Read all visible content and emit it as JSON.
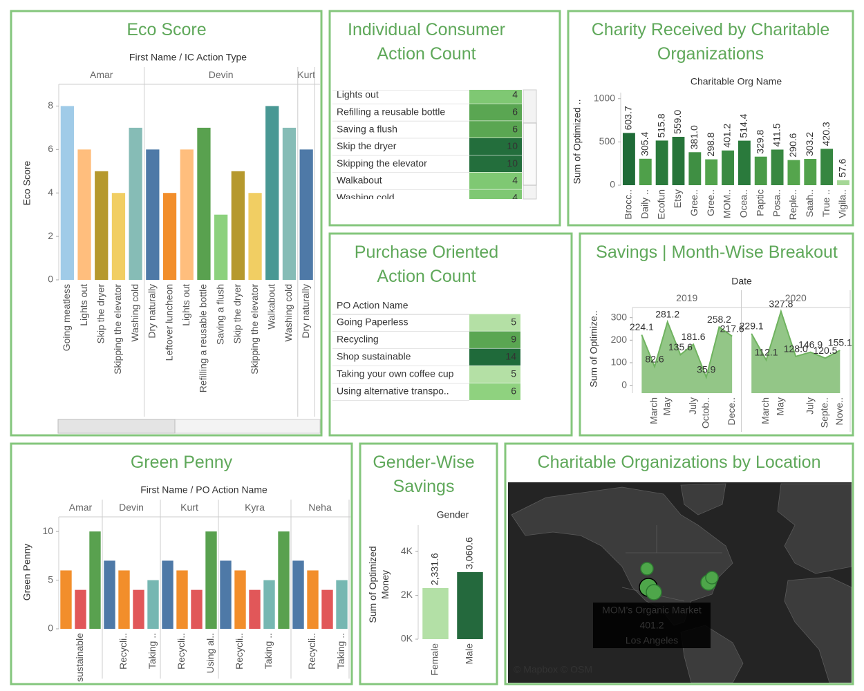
{
  "chart_data": [
    {
      "type": "grouped_bar",
      "title": "Eco Score",
      "header": "First Name / IC Action Type",
      "ylabel": "Eco Score",
      "ylim": [
        0,
        9
      ],
      "yticks": [
        0,
        2,
        4,
        6,
        8
      ],
      "groups": [
        {
          "name": "Amar",
          "categories": [
            "Going meatless",
            "Lights out",
            "Skip the dryer",
            "Skipping the elevator",
            "Washing cold"
          ],
          "values": [
            8,
            6,
            5,
            4,
            7
          ],
          "colors": [
            "#a0cbe8",
            "#ffbe7d",
            "#b6992d",
            "#f1ce63",
            "#86bcb6"
          ]
        },
        {
          "name": "Devin",
          "categories": [
            "Dry naturally",
            "Leftover luncheon",
            "Lights out",
            "Refilling a reusable bottle",
            "Saving a flush",
            "Skip the dryer",
            "Skipping the elevator",
            "Walkabout",
            "Washing cold"
          ],
          "values": [
            6,
            4,
            6,
            7,
            3,
            5,
            4,
            8,
            7
          ],
          "colors": [
            "#4e79a7",
            "#f28e2b",
            "#ffbe7d",
            "#59a14f",
            "#8cd17d",
            "#b6992d",
            "#f1ce63",
            "#499894",
            "#86bcb6"
          ]
        },
        {
          "name": "Kurt",
          "categories": [
            "Dry naturally"
          ],
          "values": [
            6
          ],
          "colors": [
            "#4e79a7"
          ]
        }
      ]
    },
    {
      "type": "table",
      "title": "Individual Consumer Action Count",
      "header": "IC Action Type",
      "rows": [
        "Lights out",
        "Refilling a reusable bottle",
        "Saving a flush",
        "Skip the dryer",
        "Skipping the elevator",
        "Walkabout",
        "Washing cold"
      ],
      "values": [
        4,
        6,
        6,
        10,
        10,
        4,
        4
      ],
      "colors": [
        "#7fc873",
        "#5aa652",
        "#5aa652",
        "#236e3c",
        "#236e3c",
        "#7fc873",
        "#7fc873"
      ]
    },
    {
      "type": "bar",
      "title": "Charity Received by Charitable Organizations",
      "header": "Charitable Org Name",
      "ylabel": "Sum of Optimized ..",
      "categories": [
        "Brocc..",
        "Daily ..",
        "Ecofun",
        "Etsy",
        "Gree..",
        "Gree..",
        "MOM..",
        "Ocea..",
        "Paptic",
        "Posa..",
        "Reple..",
        "Saah..",
        "True ..",
        "Vigila.."
      ],
      "values": [
        603.7,
        305.4,
        515.8,
        559.0,
        381.0,
        298.8,
        401.2,
        514.4,
        329.8,
        411.5,
        290.6,
        303.2,
        420.3,
        57.6
      ],
      "value_labels": [
        "603.7",
        "305.4",
        "515.8",
        "559.0",
        "381.0",
        "298.8",
        "401.2",
        "514.4",
        "329.8",
        "411.5",
        "290.6",
        "303.2",
        "420.3",
        "57.6"
      ],
      "colors": [
        "#1f6b37",
        "#4fa04a",
        "#2a7a3c",
        "#27743a",
        "#3f8f43",
        "#52a34c",
        "#3a8a42",
        "#2a7a3c",
        "#4a9b48",
        "#388841",
        "#55a54d",
        "#51a14b",
        "#368640",
        "#a5d796"
      ],
      "ylim": [
        0,
        1070
      ],
      "yticks": [
        0,
        500,
        1000
      ]
    },
    {
      "type": "table",
      "title": "Purchase Oriented Action Count",
      "header": "PO Action Name",
      "rows": [
        "Going Paperless",
        "Recycling",
        "Shop sustainable",
        "Taking your own coffee cup",
        "Using alternative transpo.."
      ],
      "values": [
        5,
        9,
        14,
        5,
        6
      ],
      "colors": [
        "#b4e0a5",
        "#5aa652",
        "#1f6a3a",
        "#b4e0a5",
        "#8fd27f"
      ]
    },
    {
      "type": "area",
      "title": "Savings | Month-Wise Breakout",
      "header": "Date",
      "ylabel": "Sum of Optimize..",
      "ylim": [
        -35,
        345
      ],
      "yticks": [
        0,
        100,
        200,
        300
      ],
      "color": "#6fb35f",
      "groups": [
        {
          "name": "2019",
          "x": [
            null,
            "March",
            "May",
            null,
            "July",
            "Octob..",
            null,
            "Dece.."
          ],
          "values": [
            224.1,
            82.6,
            281.2,
            135.6,
            181.6,
            35.9,
            258.2,
            217.6
          ],
          "value_labels": [
            "224.1",
            "82.6",
            "281.2",
            "135.6",
            "181.6",
            "35.9",
            "258.2",
            "217.6"
          ]
        },
        {
          "name": "2020",
          "x": [
            null,
            "March",
            "May",
            null,
            "July",
            "Septe..",
            "Nove.."
          ],
          "values": [
            229.1,
            112.1,
            327.8,
            128.0,
            146.9,
            120.5,
            155.1
          ],
          "value_labels": [
            "229.1",
            "112.1",
            "327.8",
            "128.0",
            "146.9",
            "120.5",
            "155.1"
          ]
        }
      ]
    },
    {
      "type": "grouped_bar",
      "title": "Green Penny",
      "header": "First Name / PO Action Name",
      "ylabel": "Green Penny",
      "ylim": [
        0,
        11.5
      ],
      "yticks": [
        0,
        5,
        10
      ],
      "groups": [
        {
          "name": "Amar",
          "categories": [
            null,
            "Shop sustainable",
            null
          ],
          "values": [
            6,
            4,
            10
          ],
          "colors": [
            "#f28e2b",
            "#e15759",
            "#59a14f"
          ]
        },
        {
          "name": "Devin",
          "categories": [
            null,
            "Recycli..",
            null,
            "Taking .."
          ],
          "values": [
            7,
            6,
            4,
            5
          ],
          "colors": [
            "#4e79a7",
            "#f28e2b",
            "#e15759",
            "#76b7b2"
          ]
        },
        {
          "name": "Kurt",
          "categories": [
            null,
            "Recycli..",
            null,
            "Using al.."
          ],
          "values": [
            7,
            6,
            4,
            10
          ],
          "colors": [
            "#4e79a7",
            "#f28e2b",
            "#e15759",
            "#59a14f"
          ]
        },
        {
          "name": "Kyra",
          "categories": [
            null,
            "Recycli..",
            null,
            "Taking ..",
            null
          ],
          "values": [
            7,
            6,
            4,
            5,
            10
          ],
          "colors": [
            "#4e79a7",
            "#f28e2b",
            "#e15759",
            "#76b7b2",
            "#59a14f"
          ]
        },
        {
          "name": "Neha",
          "categories": [
            null,
            "Recycli..",
            null,
            "Taking .."
          ],
          "values": [
            7,
            6,
            4,
            5
          ],
          "colors": [
            "#4e79a7",
            "#f28e2b",
            "#e15759",
            "#76b7b2"
          ]
        }
      ]
    },
    {
      "type": "bar",
      "title": "Gender-Wise Savings",
      "header": "Gender",
      "ylabel": "Sum of Optimized Money",
      "categories": [
        "Female",
        "Male"
      ],
      "values": [
        2331.6,
        3060.6
      ],
      "value_labels": [
        "2,331.6",
        "3,060.6"
      ],
      "colors": [
        "#b3e0a6",
        "#24693d"
      ],
      "ylim": [
        0,
        5200
      ],
      "yticks": [
        {
          "value": 0,
          "label": "0K"
        },
        {
          "value": 2000,
          "label": "2K"
        },
        {
          "value": 4000,
          "label": "4K"
        }
      ]
    },
    {
      "type": "map",
      "title": "Charitable Organizations by Location",
      "tooltip": {
        "name": "MOM’s Organic Market",
        "value": 401.2,
        "city": "Los Angeles"
      },
      "attribution": "© Mapbox © OSM"
    }
  ]
}
